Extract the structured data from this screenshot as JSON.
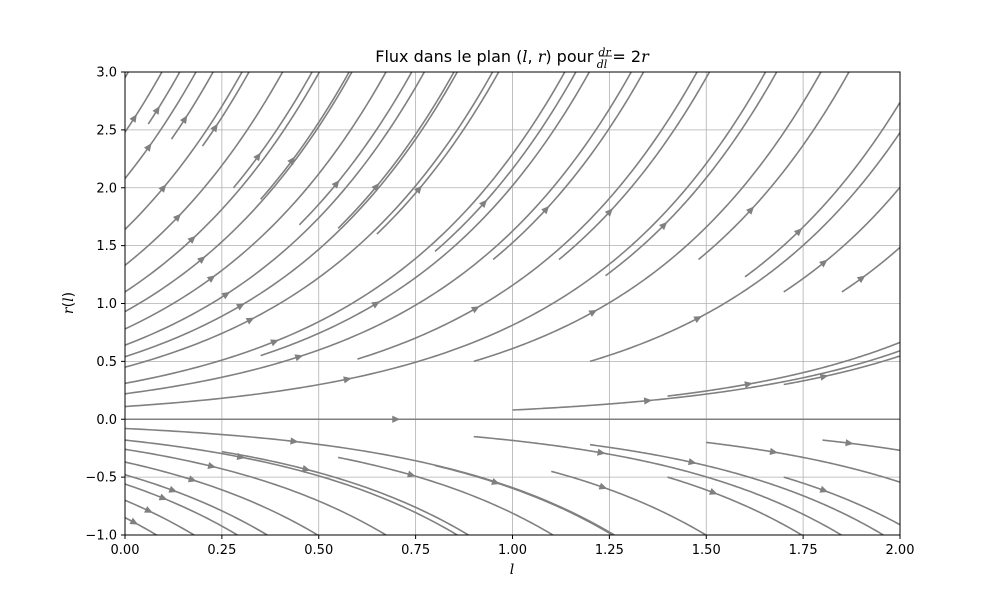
{
  "chart_data": {
    "type": "streamplot",
    "title_prefix": "Flux dans le plan (",
    "title_var_l": "l",
    "title_comma": ", ",
    "title_var_r": "r",
    "title_mid": ") pour ",
    "title_frac_num": "dr",
    "title_frac_den": "dl",
    "title_rhs": " = 2",
    "title_rhs_var": "r",
    "xlabel": "l",
    "ylabel_var": "r",
    "ylabel_open": "(",
    "ylabel_arg": "l",
    "ylabel_close": ")",
    "equation": {
      "dl": 1,
      "dr": "2*r"
    },
    "xlim": [
      0,
      2.0
    ],
    "ylim": [
      -1.0,
      3.0
    ],
    "xticks": [
      "0.00",
      "0.25",
      "0.50",
      "0.75",
      "1.00",
      "1.25",
      "1.50",
      "1.75",
      "2.00"
    ],
    "xtick_values": [
      0,
      0.25,
      0.5,
      0.75,
      1.0,
      1.25,
      1.5,
      1.75,
      2.0
    ],
    "yticks": [
      "−1.0",
      "−0.5",
      "0.0",
      "0.5",
      "1.0",
      "1.5",
      "2.0",
      "2.5",
      "3.0"
    ],
    "ytick_values": [
      -1.0,
      -0.5,
      0,
      0.5,
      1.0,
      1.5,
      2.0,
      2.5,
      3.0
    ],
    "grid": true,
    "line_color": "#808080",
    "grid_color": "#b0b0b0",
    "streamlines": [
      {
        "l0": 0.0,
        "r0": 2.95
      },
      {
        "l0": 0.0,
        "r0": 2.48
      },
      {
        "l0": 0.0,
        "r0": 2.08
      },
      {
        "l0": 0.0,
        "r0": 1.64
      },
      {
        "l0": 0.0,
        "r0": 1.33
      },
      {
        "l0": 0.0,
        "r0": 1.1
      },
      {
        "l0": 0.0,
        "r0": 0.93
      },
      {
        "l0": 0.0,
        "r0": 0.78
      },
      {
        "l0": 0.0,
        "r0": 0.64
      },
      {
        "l0": 0.0,
        "r0": 0.54
      },
      {
        "l0": 0.0,
        "r0": 0.45
      },
      {
        "l0": 0.0,
        "r0": 0.31
      },
      {
        "l0": 0.0,
        "r0": 0.22
      },
      {
        "l0": 0.0,
        "r0": 0.11
      },
      {
        "l0": 0.0,
        "r0": 0.0
      },
      {
        "l0": 0.0,
        "r0": -0.08
      },
      {
        "l0": 0.0,
        "r0": -0.18
      },
      {
        "l0": 0.0,
        "r0": -0.26
      },
      {
        "l0": 0.0,
        "r0": -0.37
      },
      {
        "l0": 0.0,
        "r0": -0.48
      },
      {
        "l0": 0.0,
        "r0": -0.56
      },
      {
        "l0": 0.0,
        "r0": -0.7
      },
      {
        "l0": 0.0,
        "r0": -0.85
      },
      {
        "l0": 0.06,
        "r0": 2.55
      },
      {
        "l0": 0.12,
        "r0": 2.42
      },
      {
        "l0": 0.2,
        "r0": 2.36
      },
      {
        "l0": 0.28,
        "r0": 2.0
      },
      {
        "l0": 0.35,
        "r0": 1.9
      },
      {
        "l0": 0.45,
        "r0": 1.68
      },
      {
        "l0": 0.55,
        "r0": 1.65
      },
      {
        "l0": 0.65,
        "r0": 1.6
      },
      {
        "l0": 0.8,
        "r0": 1.45
      },
      {
        "l0": 0.95,
        "r0": 1.38
      },
      {
        "l0": 1.12,
        "r0": 1.38
      },
      {
        "l0": 1.24,
        "r0": 1.24
      },
      {
        "l0": 1.48,
        "r0": 1.38
      },
      {
        "l0": 1.6,
        "r0": 1.23
      },
      {
        "l0": 1.7,
        "r0": 1.1
      },
      {
        "l0": 1.85,
        "r0": 1.1
      },
      {
        "l0": 0.35,
        "r0": 0.55
      },
      {
        "l0": 0.6,
        "r0": 0.52
      },
      {
        "l0": 0.9,
        "r0": 0.5
      },
      {
        "l0": 1.2,
        "r0": 0.5
      },
      {
        "l0": 1.0,
        "r0": 0.08
      },
      {
        "l0": 1.4,
        "r0": 0.2
      },
      {
        "l0": 1.7,
        "r0": 0.3
      },
      {
        "l0": 0.9,
        "r0": -0.15
      },
      {
        "l0": 1.2,
        "r0": -0.22
      },
      {
        "l0": 1.5,
        "r0": -0.2
      },
      {
        "l0": 1.8,
        "r0": -0.18
      },
      {
        "l0": 0.25,
        "r0": -0.28
      },
      {
        "l0": 0.55,
        "r0": -0.33
      },
      {
        "l0": 0.8,
        "r0": -0.4
      },
      {
        "l0": 1.1,
        "r0": -0.45
      },
      {
        "l0": 1.4,
        "r0": -0.5
      },
      {
        "l0": 1.7,
        "r0": -0.5
      }
    ]
  }
}
